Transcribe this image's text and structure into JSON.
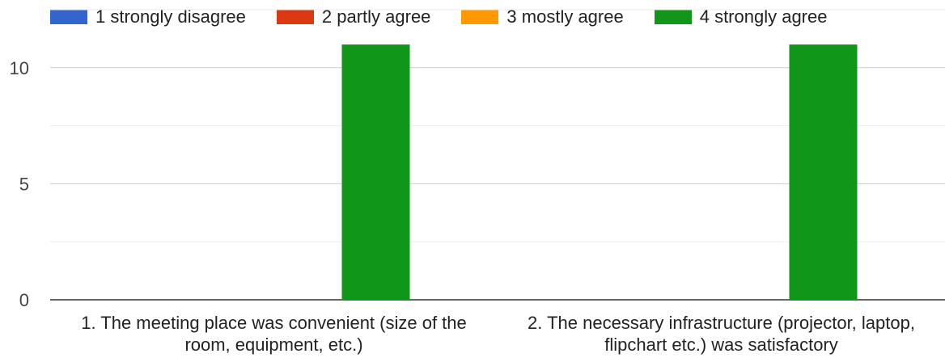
{
  "chart_data": {
    "type": "bar",
    "categories": [
      {
        "line1": "1. The meeting place was convenient (size of the",
        "line2": "room, equipment, etc.)"
      },
      {
        "line1": "2. The necessary infrastructure (projector, laptop,",
        "line2": "flipchart etc.) was satisfactory"
      }
    ],
    "series": [
      {
        "name": "1 strongly disagree",
        "color": "#3366cc",
        "values": [
          0,
          0
        ]
      },
      {
        "name": "2 partly agree",
        "color": "#dc3912",
        "values": [
          0,
          0
        ]
      },
      {
        "name": "3 mostly agree",
        "color": "#ff9900",
        "values": [
          0,
          0
        ]
      },
      {
        "name": "4 strongly agree",
        "color": "#109618",
        "values": [
          11,
          11
        ]
      }
    ],
    "ylim": [
      0,
      12.5
    ],
    "yticks": [
      0,
      5,
      10
    ],
    "gridlines": [
      0,
      2.5,
      5,
      7.5,
      10,
      12.5
    ],
    "legend": "top",
    "grid": true
  }
}
